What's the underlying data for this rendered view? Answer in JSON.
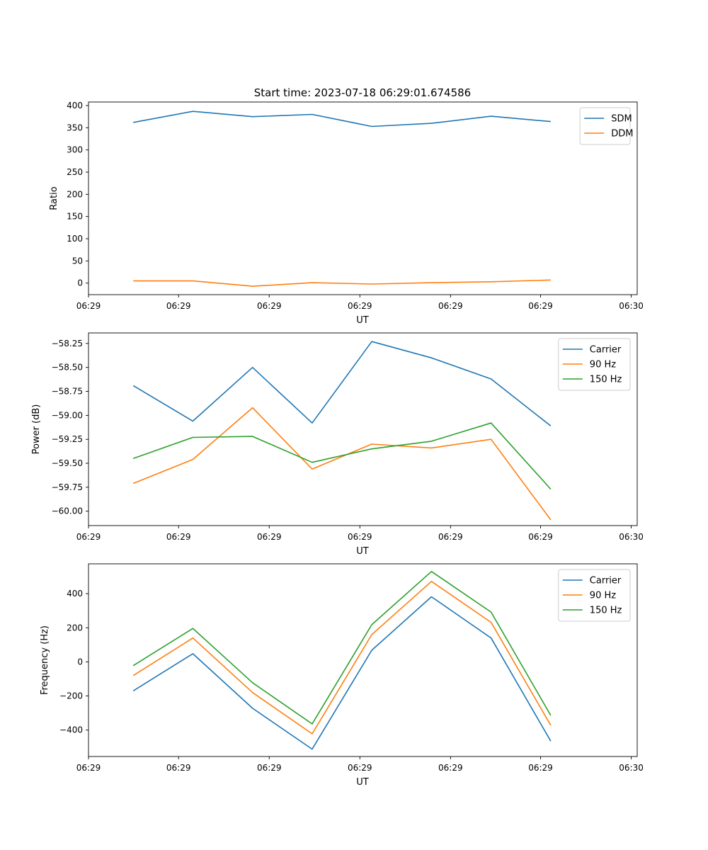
{
  "chart_data": [
    {
      "type": "line",
      "title": "Start time: 2023-07-18 06:29:01.674586",
      "xlabel": "UT",
      "ylabel": "Ratio",
      "x": [
        0,
        1,
        2,
        3,
        4,
        5,
        6,
        7
      ],
      "xlim": [
        -0.75,
        8.45
      ],
      "xticks": [
        -0.75,
        0.76,
        2.28,
        3.8,
        5.32,
        6.83,
        8.35
      ],
      "xtick_labels": [
        "06:29",
        "06:29",
        "06:29",
        "06:29",
        "06:29",
        "06:29",
        "06:30"
      ],
      "ylim": [
        -26,
        408
      ],
      "yticks": [
        0,
        50,
        100,
        150,
        200,
        250,
        300,
        350,
        400
      ],
      "ytick_labels": [
        "0",
        "50",
        "100",
        "150",
        "200",
        "250",
        "300",
        "350",
        "400"
      ],
      "legend": "top-right",
      "series": [
        {
          "name": "SDM",
          "color": "#1f77b4",
          "values": [
            362,
            387,
            375,
            380,
            353,
            360,
            376,
            364
          ]
        },
        {
          "name": "DDM",
          "color": "#ff7f0e",
          "values": [
            5,
            5,
            -7,
            1,
            -2,
            1,
            3,
            7
          ]
        }
      ]
    },
    {
      "type": "line",
      "title": "",
      "xlabel": "UT",
      "ylabel": "Power (dB)",
      "x": [
        0,
        1,
        2,
        3,
        4,
        5,
        6,
        7
      ],
      "xlim": [
        -0.75,
        8.45
      ],
      "xticks": [
        -0.75,
        0.76,
        2.28,
        3.8,
        5.32,
        6.83,
        8.35
      ],
      "xtick_labels": [
        "06:29",
        "06:29",
        "06:29",
        "06:29",
        "06:29",
        "06:29",
        "06:30"
      ],
      "ylim": [
        -60.15,
        -58.14
      ],
      "yticks": [
        -60.0,
        -59.75,
        -59.5,
        -59.25,
        -59.0,
        -58.75,
        -58.5,
        -58.25
      ],
      "ytick_labels": [
        "−60.00",
        "−59.75",
        "−59.50",
        "−59.25",
        "−59.00",
        "−58.75",
        "−58.50",
        "−58.25"
      ],
      "legend": "top-right",
      "series": [
        {
          "name": "Carrier",
          "color": "#1f77b4",
          "values": [
            -58.69,
            -59.06,
            -58.5,
            -59.08,
            -58.23,
            -58.4,
            -58.62,
            -59.11
          ]
        },
        {
          "name": "90 Hz",
          "color": "#ff7f0e",
          "values": [
            -59.71,
            -59.46,
            -58.92,
            -59.56,
            -59.3,
            -59.34,
            -59.25,
            -60.09
          ]
        },
        {
          "name": "150 Hz",
          "color": "#2ca02c",
          "values": [
            -59.45,
            -59.23,
            -59.22,
            -59.49,
            -59.35,
            -59.27,
            -59.08,
            -59.77
          ]
        }
      ]
    },
    {
      "type": "line",
      "title": "",
      "xlabel": "UT",
      "ylabel": "Frequency (Hz)",
      "x": [
        0,
        1,
        2,
        3,
        4,
        5,
        6,
        7
      ],
      "xlim": [
        -0.75,
        8.45
      ],
      "xticks": [
        -0.75,
        0.76,
        2.28,
        3.8,
        5.32,
        6.83,
        8.35
      ],
      "xtick_labels": [
        "06:29",
        "06:29",
        "06:29",
        "06:29",
        "06:29",
        "06:29",
        "06:30"
      ],
      "ylim": [
        -555,
        575
      ],
      "yticks": [
        -400,
        -200,
        0,
        200,
        400
      ],
      "ytick_labels": [
        "−400",
        "−200",
        "0",
        "200",
        "400"
      ],
      "legend": "top-right",
      "series": [
        {
          "name": "Carrier",
          "color": "#1f77b4",
          "values": [
            -170,
            48,
            -272,
            -512,
            68,
            382,
            140,
            -465
          ]
        },
        {
          "name": "90 Hz",
          "color": "#ff7f0e",
          "values": [
            -80,
            140,
            -180,
            -422,
            160,
            472,
            232,
            -372
          ]
        },
        {
          "name": "150 Hz",
          "color": "#2ca02c",
          "values": [
            -22,
            196,
            -122,
            -364,
            218,
            530,
            292,
            -314
          ]
        }
      ]
    }
  ]
}
